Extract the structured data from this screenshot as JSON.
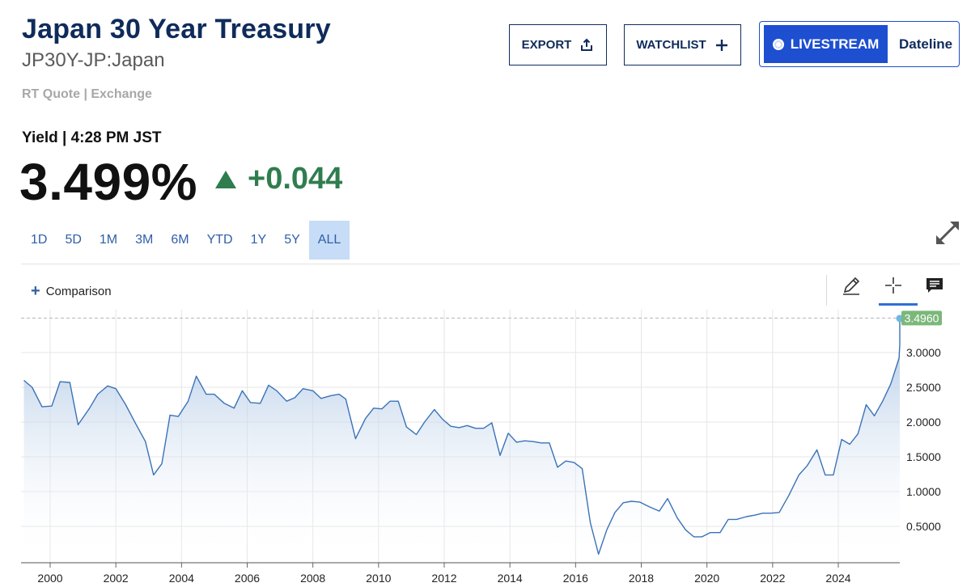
{
  "header": {
    "title": "Japan 30 Year Treasury",
    "subtitle": "JP30Y-JP:Japan",
    "quote_source": "RT Quote | Exchange"
  },
  "actions": {
    "export_label": "EXPORT",
    "watchlist_label": "WATCHLIST",
    "livestream_label": "LIVESTREAM",
    "dateline_label": "Dateline"
  },
  "quote": {
    "yield_label": "Yield | 4:28 PM JST",
    "price": "3.499%",
    "change": "+0.044",
    "change_direction": "up",
    "change_color": "#2f7d4f"
  },
  "ranges": [
    {
      "label": "1D",
      "active": false
    },
    {
      "label": "5D",
      "active": false
    },
    {
      "label": "1M",
      "active": false
    },
    {
      "label": "3M",
      "active": false
    },
    {
      "label": "6M",
      "active": false
    },
    {
      "label": "YTD",
      "active": false
    },
    {
      "label": "1Y",
      "active": false
    },
    {
      "label": "5Y",
      "active": false
    },
    {
      "label": "ALL",
      "active": true
    }
  ],
  "chart_toolbar": {
    "comparison_label": "Comparison",
    "tools": [
      "pencil-icon",
      "crosshair-icon",
      "notes-icon"
    ],
    "active_tool": "crosshair-icon"
  },
  "chart_data": {
    "type": "area",
    "title": "",
    "xlabel": "",
    "ylabel": "",
    "line_color": "#3a72b8",
    "fill_top_color": "#9fbde0",
    "last_value_label": "3.4960",
    "last_value_color": "#7bb87a",
    "xlim": [
      1999.2,
      2025.6
    ],
    "ylim": [
      0.05,
      3.6
    ],
    "x_ticks": [
      2000,
      2002,
      2004,
      2006,
      2008,
      2010,
      2012,
      2014,
      2016,
      2018,
      2020,
      2022,
      2024
    ],
    "y_ticks": [
      0.5,
      1.0,
      1.5,
      2.0,
      2.5,
      3.0
    ],
    "y_tick_labels": [
      "0.5000",
      "1.0000",
      "1.5000",
      "2.0000",
      "2.5000",
      "3.0000"
    ],
    "grid": true,
    "reference_line": 3.496,
    "series": [
      {
        "points": [
          [
            1999.2,
            2.6
          ],
          [
            1999.45,
            2.5
          ],
          [
            1999.75,
            2.22
          ],
          [
            2000.05,
            2.23
          ],
          [
            2000.3,
            2.58
          ],
          [
            2000.6,
            2.57
          ],
          [
            2000.85,
            1.96
          ],
          [
            2001.2,
            2.2
          ],
          [
            2001.45,
            2.4
          ],
          [
            2001.75,
            2.52
          ],
          [
            2002.0,
            2.48
          ],
          [
            2002.3,
            2.25
          ],
          [
            2002.6,
            1.98
          ],
          [
            2002.9,
            1.72
          ],
          [
            2003.15,
            1.24
          ],
          [
            2003.4,
            1.4
          ],
          [
            2003.65,
            2.1
          ],
          [
            2003.9,
            2.08
          ],
          [
            2004.2,
            2.3
          ],
          [
            2004.45,
            2.66
          ],
          [
            2004.75,
            2.4
          ],
          [
            2005.0,
            2.4
          ],
          [
            2005.3,
            2.27
          ],
          [
            2005.6,
            2.2
          ],
          [
            2005.85,
            2.45
          ],
          [
            2006.1,
            2.28
          ],
          [
            2006.4,
            2.27
          ],
          [
            2006.65,
            2.53
          ],
          [
            2006.9,
            2.45
          ],
          [
            2007.2,
            2.3
          ],
          [
            2007.45,
            2.35
          ],
          [
            2007.7,
            2.48
          ],
          [
            2008.0,
            2.45
          ],
          [
            2008.25,
            2.34
          ],
          [
            2008.55,
            2.38
          ],
          [
            2008.8,
            2.4
          ],
          [
            2009.0,
            2.33
          ],
          [
            2009.3,
            1.76
          ],
          [
            2009.6,
            2.05
          ],
          [
            2009.85,
            2.2
          ],
          [
            2010.1,
            2.19
          ],
          [
            2010.35,
            2.3
          ],
          [
            2010.6,
            2.3
          ],
          [
            2010.85,
            1.93
          ],
          [
            2011.15,
            1.82
          ],
          [
            2011.4,
            2.0
          ],
          [
            2011.7,
            2.18
          ],
          [
            2011.95,
            2.04
          ],
          [
            2012.2,
            1.94
          ],
          [
            2012.45,
            1.92
          ],
          [
            2012.7,
            1.95
          ],
          [
            2012.95,
            1.91
          ],
          [
            2013.2,
            1.91
          ],
          [
            2013.45,
            1.99
          ],
          [
            2013.7,
            1.52
          ],
          [
            2013.95,
            1.84
          ],
          [
            2014.2,
            1.71
          ],
          [
            2014.45,
            1.73
          ],
          [
            2014.7,
            1.72
          ],
          [
            2014.95,
            1.7
          ],
          [
            2015.2,
            1.7
          ],
          [
            2015.45,
            1.35
          ],
          [
            2015.7,
            1.44
          ],
          [
            2015.95,
            1.42
          ],
          [
            2016.2,
            1.33
          ],
          [
            2016.45,
            0.55
          ],
          [
            2016.7,
            0.1
          ],
          [
            2016.95,
            0.45
          ],
          [
            2017.2,
            0.7
          ],
          [
            2017.45,
            0.84
          ],
          [
            2017.7,
            0.86
          ],
          [
            2017.95,
            0.85
          ],
          [
            2018.25,
            0.78
          ],
          [
            2018.55,
            0.72
          ],
          [
            2018.8,
            0.9
          ],
          [
            2019.1,
            0.62
          ],
          [
            2019.35,
            0.45
          ],
          [
            2019.6,
            0.35
          ],
          [
            2019.85,
            0.35
          ],
          [
            2020.1,
            0.41
          ],
          [
            2020.4,
            0.41
          ],
          [
            2020.65,
            0.6
          ],
          [
            2020.9,
            0.6
          ],
          [
            2021.2,
            0.64
          ],
          [
            2021.45,
            0.66
          ],
          [
            2021.7,
            0.69
          ],
          [
            2021.95,
            0.69
          ],
          [
            2022.2,
            0.7
          ],
          [
            2022.5,
            0.95
          ],
          [
            2022.8,
            1.24
          ],
          [
            2023.05,
            1.37
          ],
          [
            2023.35,
            1.6
          ],
          [
            2023.6,
            1.24
          ],
          [
            2023.85,
            1.24
          ],
          [
            2024.1,
            1.75
          ],
          [
            2024.35,
            1.68
          ],
          [
            2024.6,
            1.83
          ],
          [
            2024.85,
            2.25
          ],
          [
            2025.1,
            2.09
          ],
          [
            2025.35,
            2.3
          ],
          [
            2025.6,
            2.55
          ],
          [
            2025.85,
            2.92
          ],
          [
            2026.1,
            3.12
          ],
          [
            2026.35,
            3.4
          ],
          [
            2026.6,
            3.49
          ]
        ]
      }
    ]
  }
}
